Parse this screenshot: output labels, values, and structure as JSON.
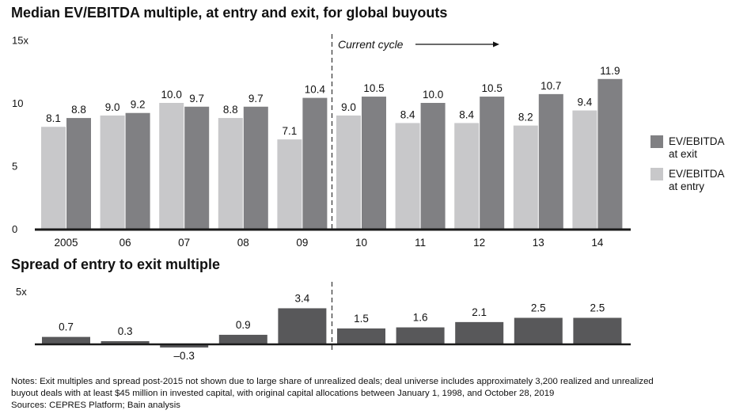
{
  "colors": {
    "exit": "#808083",
    "entry": "#c8c8ca",
    "spread": "#58585a",
    "axis": "#1a1a1a"
  },
  "chart_data": [
    {
      "type": "bar",
      "title": "Median EV/EBITDA multiple, at entry and exit, for global buyouts",
      "categories": [
        "2005",
        "06",
        "07",
        "08",
        "09",
        "10",
        "11",
        "12",
        "13",
        "14"
      ],
      "series": [
        {
          "name": "EV/EBITDA at entry",
          "label_lines": [
            "EV/EBITDA",
            "at entry"
          ],
          "values": [
            8.1,
            9.0,
            10.0,
            8.8,
            7.1,
            9.0,
            8.4,
            8.4,
            8.2,
            9.4
          ]
        },
        {
          "name": "EV/EBITDA at exit",
          "label_lines": [
            "EV/EBITDA",
            "at exit"
          ],
          "values": [
            8.8,
            9.2,
            9.7,
            9.7,
            10.4,
            10.5,
            10.0,
            10.5,
            10.7,
            11.9
          ]
        }
      ],
      "data_labels": {
        "entry": [
          "8.1",
          "9.0",
          "10.0",
          "8.8",
          "7.1",
          "9.0",
          "8.4",
          "8.4",
          "8.2",
          "9.4"
        ],
        "exit": [
          "8.8",
          "9.2",
          "9.7",
          "9.7",
          "10.4",
          "10.5",
          "10.0",
          "10.5",
          "10.7",
          "11.9"
        ]
      },
      "ylim": [
        0,
        15
      ],
      "yticks": [
        "0",
        "5",
        "10",
        "15x"
      ],
      "annotation": "Current cycle",
      "xlabel": "",
      "ylabel": ""
    },
    {
      "type": "bar",
      "title": "Spread of entry to exit multiple",
      "categories": [
        "2005",
        "06",
        "07",
        "08",
        "09",
        "10",
        "11",
        "12",
        "13",
        "14"
      ],
      "values": [
        0.7,
        0.3,
        -0.3,
        0.9,
        3.4,
        1.5,
        1.6,
        2.1,
        2.5,
        2.5
      ],
      "data_labels": [
        "0.7",
        "0.3",
        "–0.3",
        "0.9",
        "3.4",
        "1.5",
        "1.6",
        "2.1",
        "2.5",
        "2.5"
      ],
      "ylim": [
        -0.3,
        5
      ],
      "yticks": [
        "5x"
      ]
    }
  ],
  "notes": {
    "line1": "Notes: Exit multiples and spread post-2015 not shown due to large share of unrealized deals; deal universe includes approximately 3,200 realized and unrealized",
    "line2": "buyout deals with at least $45 million in invested capital, with original capital allocations between January 1, 1998, and October 28, 2019",
    "sources": "Sources: CEPRES Platform; Bain analysis"
  }
}
